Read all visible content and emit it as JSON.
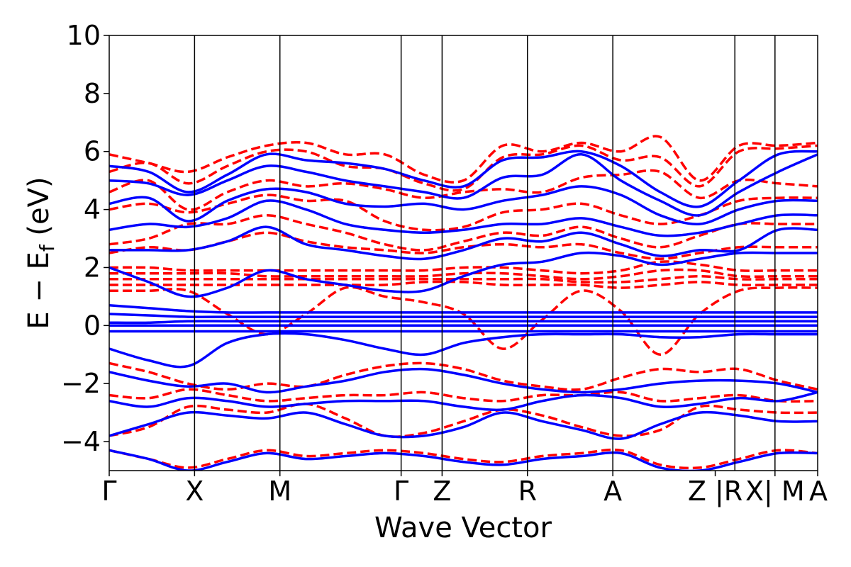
{
  "chart_data": {
    "type": "line",
    "xlabel": "Wave Vector",
    "ylabel": "E − E_f (eV)",
    "ylabel_main": "E − E",
    "ylabel_sub": "f",
    "ylabel_tail": " (eV)",
    "ylim": [
      -5,
      10
    ],
    "yticks": [
      "−4",
      "−2",
      "0",
      "2",
      "4",
      "6",
      "8",
      "10"
    ],
    "ytick_values": [
      -4,
      -2,
      0,
      2,
      4,
      6,
      8,
      10
    ],
    "x_range": [
      0,
      8.3
    ],
    "kpoints": [
      {
        "label": "Γ",
        "x": 0
      },
      {
        "label": "X",
        "x": 1.0
      },
      {
        "label": "M",
        "x": 2.0
      },
      {
        "label": "Γ",
        "x": 3.42
      },
      {
        "label": "Z",
        "x": 3.9
      },
      {
        "label": "R",
        "x": 4.9
      },
      {
        "label": "A",
        "x": 5.9
      },
      {
        "label": "Z |R",
        "x": 7.1
      },
      {
        "label": "X| M",
        "x": 7.8
      },
      {
        "label": "A",
        "x": 8.3
      }
    ],
    "vertical_lines": [
      1.0,
      2.0,
      3.42,
      3.9,
      4.9,
      5.9,
      7.33,
      7.8
    ],
    "grid": false,
    "series_styles": [
      {
        "style": "dashed",
        "color": "#ff0000"
      },
      {
        "style": "solid",
        "color": "#0000ff"
      }
    ],
    "series": [
      {
        "style": "dashed",
        "values": [
          5.9,
          5.6,
          5.3,
          5.8,
          6.2,
          6.3,
          5.9,
          5.9,
          5.2,
          5.0,
          6.2,
          6.0,
          6.3,
          6.0,
          6.5,
          5.0,
          6.2,
          6.2,
          6.3
        ]
      },
      {
        "style": "dashed",
        "values": [
          5.3,
          5.6,
          4.9,
          5.5,
          6.0,
          6.0,
          5.5,
          5.4,
          4.9,
          4.7,
          5.8,
          5.9,
          6.2,
          5.7,
          5.8,
          4.8,
          6.0,
          6.1,
          6.2
        ]
      },
      {
        "style": "dashed",
        "values": [
          4.6,
          5.0,
          4.0,
          4.6,
          5.0,
          4.8,
          4.9,
          4.7,
          4.4,
          4.6,
          4.7,
          4.6,
          5.1,
          5.2,
          5.3,
          4.4,
          5.0,
          4.9,
          4.8
        ]
      },
      {
        "style": "dashed",
        "values": [
          4.0,
          4.2,
          3.9,
          4.2,
          4.5,
          4.3,
          4.3,
          3.6,
          3.3,
          3.4,
          3.9,
          4.0,
          4.2,
          3.8,
          3.5,
          3.8,
          4.3,
          4.4,
          4.4
        ]
      },
      {
        "style": "dashed",
        "values": [
          2.8,
          3.0,
          3.5,
          3.5,
          3.8,
          3.5,
          3.2,
          2.8,
          2.6,
          2.9,
          3.2,
          3.1,
          3.4,
          3.0,
          2.7,
          3.1,
          3.5,
          3.5,
          3.5
        ]
      },
      {
        "style": "dashed",
        "values": [
          2.5,
          2.7,
          2.6,
          2.9,
          3.2,
          2.9,
          2.7,
          2.6,
          2.5,
          2.7,
          2.8,
          2.7,
          2.8,
          2.5,
          2.3,
          2.5,
          2.7,
          2.7,
          2.7
        ]
      },
      {
        "style": "dashed",
        "values": [
          2.0,
          2.0,
          1.9,
          1.9,
          1.9,
          1.9,
          1.9,
          1.9,
          1.9,
          2.0,
          2.0,
          1.9,
          1.8,
          1.9,
          2.2,
          2.1,
          1.9,
          1.9,
          1.9
        ]
      },
      {
        "style": "dashed",
        "values": [
          1.8,
          1.8,
          1.8,
          1.8,
          1.7,
          1.7,
          1.7,
          1.7,
          1.7,
          1.8,
          1.8,
          1.7,
          1.6,
          1.7,
          1.9,
          1.9,
          1.7,
          1.7,
          1.7
        ]
      },
      {
        "style": "dashed",
        "values": [
          1.6,
          1.6,
          1.6,
          1.6,
          1.6,
          1.6,
          1.6,
          1.6,
          1.6,
          1.6,
          1.6,
          1.6,
          1.5,
          1.5,
          1.6,
          1.7,
          1.6,
          1.6,
          1.6
        ]
      },
      {
        "style": "dashed",
        "values": [
          1.4,
          1.4,
          1.4,
          1.4,
          1.4,
          1.4,
          1.4,
          1.4,
          1.5,
          1.5,
          1.4,
          1.4,
          1.4,
          1.3,
          1.4,
          1.5,
          1.4,
          1.4,
          1.4
        ]
      },
      {
        "style": "dashed",
        "values": [
          1.2,
          1.2,
          1.2,
          0.4,
          -0.3,
          0.4,
          1.3,
          1.0,
          0.8,
          0.4,
          -0.8,
          0.2,
          1.2,
          0.5,
          -1.0,
          0.4,
          1.2,
          1.3,
          1.3
        ]
      },
      {
        "style": "dashed",
        "values": [
          -1.3,
          -1.6,
          -2.0,
          -2.2,
          -2.0,
          -2.1,
          -1.7,
          -1.4,
          -1.3,
          -1.5,
          -1.9,
          -2.1,
          -2.2,
          -1.8,
          -1.5,
          -1.6,
          -1.5,
          -1.9,
          -2.2
        ]
      },
      {
        "style": "dashed",
        "values": [
          -2.4,
          -2.5,
          -2.2,
          -2.4,
          -2.6,
          -2.5,
          -2.4,
          -2.4,
          -2.3,
          -2.5,
          -2.6,
          -2.4,
          -2.4,
          -2.3,
          -2.6,
          -2.5,
          -2.4,
          -2.6,
          -2.6
        ]
      },
      {
        "style": "dashed",
        "values": [
          -3.8,
          -3.5,
          -2.8,
          -2.9,
          -3.0,
          -2.7,
          -3.2,
          -3.8,
          -3.7,
          -3.3,
          -2.9,
          -3.1,
          -3.5,
          -3.8,
          -3.6,
          -2.8,
          -2.9,
          -3.0,
          -3.0
        ]
      },
      {
        "style": "dashed",
        "values": [
          -4.3,
          -4.6,
          -4.9,
          -4.6,
          -4.3,
          -4.5,
          -4.4,
          -4.3,
          -4.4,
          -4.6,
          -4.7,
          -4.5,
          -4.4,
          -4.3,
          -4.8,
          -4.9,
          -4.6,
          -4.3,
          -4.4
        ]
      },
      {
        "style": "solid",
        "values": [
          5.5,
          5.3,
          4.6,
          5.2,
          5.9,
          5.7,
          5.6,
          5.4,
          5.0,
          4.8,
          5.7,
          5.8,
          6.0,
          5.5,
          4.6,
          4.1,
          5.0,
          5.9,
          6.0
        ]
      },
      {
        "style": "solid",
        "values": [
          5.0,
          4.9,
          4.5,
          5.0,
          5.5,
          5.3,
          5.0,
          4.8,
          4.6,
          4.4,
          5.1,
          5.2,
          5.9,
          5.0,
          4.3,
          3.8,
          4.6,
          5.3,
          5.9
        ]
      },
      {
        "style": "solid",
        "values": [
          4.2,
          4.4,
          3.6,
          4.3,
          4.7,
          4.6,
          4.2,
          4.1,
          4.2,
          4.0,
          4.3,
          4.5,
          4.8,
          4.5,
          3.8,
          3.5,
          4.0,
          4.3,
          4.3
        ]
      },
      {
        "style": "solid",
        "values": [
          3.3,
          3.5,
          3.4,
          3.7,
          4.3,
          4.0,
          3.5,
          3.3,
          3.2,
          3.3,
          3.5,
          3.5,
          3.7,
          3.4,
          3.1,
          3.2,
          3.5,
          3.8,
          3.8
        ]
      },
      {
        "style": "solid",
        "values": [
          2.6,
          2.6,
          2.6,
          2.9,
          3.4,
          2.8,
          2.6,
          2.4,
          2.3,
          2.6,
          3.0,
          2.9,
          3.2,
          2.8,
          2.4,
          2.6,
          2.6,
          3.3,
          3.3
        ]
      },
      {
        "style": "solid",
        "values": [
          2.0,
          1.5,
          1.0,
          1.3,
          1.9,
          1.6,
          1.4,
          1.2,
          1.2,
          1.7,
          2.1,
          2.2,
          2.5,
          2.4,
          2.1,
          2.3,
          2.5,
          2.5,
          2.5
        ]
      },
      {
        "style": "solid",
        "values": [
          0.7,
          0.6,
          0.5,
          0.45,
          0.45,
          0.45,
          0.45,
          0.45,
          0.45,
          0.45,
          0.45,
          0.45,
          0.45,
          0.45,
          0.45,
          0.45,
          0.45,
          0.45,
          0.45
        ]
      },
      {
        "style": "solid",
        "values": [
          0.4,
          0.35,
          0.3,
          0.3,
          0.3,
          0.3,
          0.3,
          0.3,
          0.3,
          0.3,
          0.3,
          0.3,
          0.3,
          0.3,
          0.3,
          0.3,
          0.3,
          0.3,
          0.3
        ]
      },
      {
        "style": "solid",
        "values": [
          0.1,
          0.1,
          0.15,
          0.15,
          0.15,
          0.15,
          0.15,
          0.15,
          0.15,
          0.15,
          0.15,
          0.15,
          0.15,
          0.15,
          0.15,
          0.15,
          0.15,
          0.15,
          0.15
        ]
      },
      {
        "style": "solid",
        "values": [
          0.0,
          0.0,
          0.0,
          0.0,
          0.0,
          0.0,
          0.0,
          0.0,
          0.0,
          0.0,
          0.0,
          0.0,
          0.0,
          0.0,
          0.0,
          0.0,
          0.0,
          0.0,
          0.0
        ]
      },
      {
        "style": "solid",
        "values": [
          -0.2,
          -0.2,
          -0.2,
          -0.2,
          -0.2,
          -0.2,
          -0.2,
          -0.2,
          -0.2,
          -0.2,
          -0.2,
          -0.2,
          -0.2,
          -0.2,
          -0.2,
          -0.2,
          -0.2,
          -0.2,
          -0.2
        ]
      },
      {
        "style": "solid",
        "values": [
          -0.8,
          -1.2,
          -1.4,
          -0.6,
          -0.3,
          -0.3,
          -0.5,
          -0.8,
          -1.0,
          -0.6,
          -0.4,
          -0.3,
          -0.3,
          -0.3,
          -0.4,
          -0.4,
          -0.3,
          -0.3,
          -0.3
        ]
      },
      {
        "style": "solid",
        "values": [
          -1.6,
          -1.9,
          -2.1,
          -2.0,
          -2.3,
          -2.1,
          -1.9,
          -1.6,
          -1.5,
          -1.7,
          -2.0,
          -2.2,
          -2.3,
          -2.2,
          -2.0,
          -1.9,
          -1.9,
          -2.0,
          -2.3
        ]
      },
      {
        "style": "solid",
        "values": [
          -2.6,
          -2.8,
          -2.5,
          -2.6,
          -2.8,
          -2.7,
          -2.6,
          -2.6,
          -2.6,
          -2.8,
          -2.9,
          -2.6,
          -2.4,
          -2.5,
          -2.8,
          -2.7,
          -2.5,
          -2.6,
          -2.3
        ]
      },
      {
        "style": "solid",
        "values": [
          -3.8,
          -3.4,
          -3.0,
          -3.1,
          -3.2,
          -3.0,
          -3.4,
          -3.8,
          -3.8,
          -3.5,
          -3.0,
          -3.3,
          -3.6,
          -3.9,
          -3.4,
          -3.0,
          -3.1,
          -3.3,
          -3.3
        ]
      },
      {
        "style": "solid",
        "values": [
          -4.3,
          -4.6,
          -5.0,
          -4.7,
          -4.4,
          -4.6,
          -4.5,
          -4.4,
          -4.5,
          -4.7,
          -4.8,
          -4.6,
          -4.5,
          -4.4,
          -4.9,
          -5.0,
          -4.7,
          -4.4,
          -4.4
        ]
      }
    ]
  }
}
